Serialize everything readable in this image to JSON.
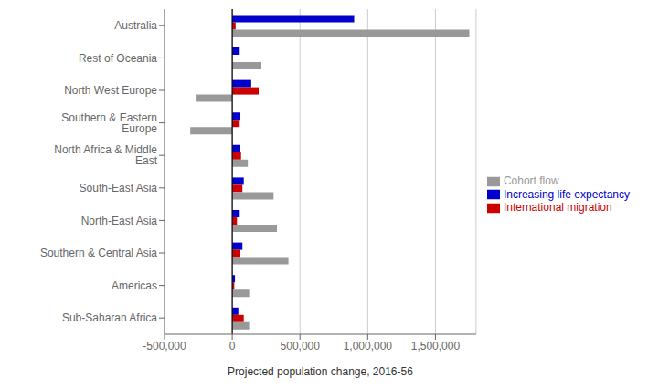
{
  "chart_data": {
    "type": "bar",
    "orientation": "horizontal",
    "categories": [
      "Australia",
      "Rest of Oceania",
      "North West Europe",
      "Southern & Eastern Europe",
      "North Africa & Middle East",
      "South-East Asia",
      "North-East Asia",
      "Southern & Central Asia",
      "Americas",
      "Sub-Saharan Africa"
    ],
    "series": [
      {
        "name": "Increasing life expectancy",
        "color": "#0000cc",
        "values": [
          900000,
          55000,
          140000,
          60000,
          60000,
          85000,
          55000,
          75000,
          20000,
          45000
        ]
      },
      {
        "name": "International migration",
        "color": "#cc0000",
        "values": [
          25000,
          0,
          195000,
          55000,
          65000,
          75000,
          35000,
          60000,
          15000,
          85000
        ]
      },
      {
        "name": "Cohort flow",
        "color": "#999999",
        "values": [
          1750000,
          215000,
          -270000,
          -310000,
          115000,
          305000,
          330000,
          415000,
          125000,
          125000
        ]
      }
    ],
    "xlabel": "Projected population change, 2016-56",
    "xlim": [
      -500000,
      1800000
    ],
    "xticks": [
      {
        "value": -500000,
        "label": "-500,000"
      },
      0,
      {
        "value": 500000,
        "label": "500,000"
      },
      {
        "value": 1000000,
        "label": "1,000,000"
      },
      {
        "value": 1500000,
        "label": "1,500,000"
      }
    ],
    "grid": true,
    "legend": "right"
  }
}
